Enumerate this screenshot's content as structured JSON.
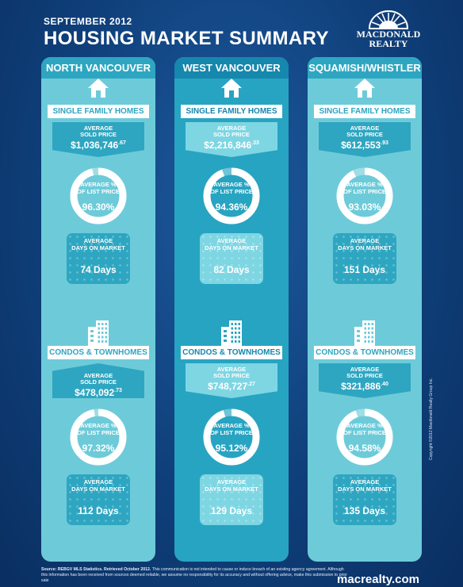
{
  "header": {
    "date": "SEPTEMBER 2012",
    "title": "HOUSING MARKET SUMMARY"
  },
  "logo": {
    "line1": "MACDONALD",
    "line2": "REALTY",
    "icon": "sunburst-logo-icon"
  },
  "colors": {
    "light_column": "#6dcbd9",
    "dark_column": "#27a4c2",
    "background": "#0f3f7a"
  },
  "columns": [
    {
      "name": "NORTH VANCOUVER",
      "sfh": {
        "label": "SINGLE FAMILY HOMES",
        "price_label_1": "AVERAGE",
        "price_label_2": "SOLD PRICE",
        "price": "$1,036,746",
        "price_cents": ".67",
        "ratio_label_1": "AVERAGE %",
        "ratio_label_2": "OF LIST PRICE",
        "ratio": "96.30%",
        "ratio_pct": 96.3,
        "days_label_1": "AVERAGE",
        "days_label_2": "DAYS ON MARKET",
        "days": "74 Days"
      },
      "condo": {
        "label": "CONDOS & TOWNHOMES",
        "price_label_1": "AVERAGE",
        "price_label_2": "SOLD PRICE",
        "price": "$478,092",
        "price_cents": ".73",
        "ratio_label_1": "AVERAGE %",
        "ratio_label_2": "OF LIST PRICE",
        "ratio": "97.32%",
        "ratio_pct": 97.32,
        "days_label_1": "AVERAGE",
        "days_label_2": "DAYS ON MARKET",
        "days": "112 Days"
      }
    },
    {
      "name": "WEST VANCOUVER",
      "sfh": {
        "label": "SINGLE FAMILY HOMES",
        "price_label_1": "AVERAGE",
        "price_label_2": "SOLD PRICE",
        "price": "$2,216,846",
        "price_cents": ".33",
        "ratio_label_1": "AVERAGE %",
        "ratio_label_2": "OF LIST PRICE",
        "ratio": "94.36%",
        "ratio_pct": 94.36,
        "days_label_1": "AVERAGE",
        "days_label_2": "DAYS ON MARKET",
        "days": "82 Days"
      },
      "condo": {
        "label": "CONDOS & TOWNHOMES",
        "price_label_1": "AVERAGE",
        "price_label_2": "SOLD PRICE",
        "price": "$748,727",
        "price_cents": ".27",
        "ratio_label_1": "AVERAGE %",
        "ratio_label_2": "OF LIST PRICE",
        "ratio": "95.12%",
        "ratio_pct": 95.12,
        "days_label_1": "AVERAGE",
        "days_label_2": "DAYS ON MARKET",
        "days": "129 Days"
      }
    },
    {
      "name": "SQUAMISH/WHISTLER",
      "sfh": {
        "label": "SINGLE FAMILY HOMES",
        "price_label_1": "AVERAGE",
        "price_label_2": "SOLD PRICE",
        "price": "$612,553",
        "price_cents": ".93",
        "ratio_label_1": "AVERAGE %",
        "ratio_label_2": "OF LIST PRICE",
        "ratio": "93.03%",
        "ratio_pct": 93.03,
        "days_label_1": "AVERAGE",
        "days_label_2": "DAYS ON MARKET",
        "days": "151 Days"
      },
      "condo": {
        "label": "CONDOS & TOWNHOMES",
        "price_label_1": "AVERAGE",
        "price_label_2": "SOLD PRICE",
        "price": "$321,886",
        "price_cents": ".40",
        "ratio_label_1": "AVERAGE %",
        "ratio_label_2": "OF LIST PRICE",
        "ratio": "94.58%",
        "ratio_pct": 94.58,
        "days_label_1": "AVERAGE",
        "days_label_2": "DAYS ON MARKET",
        "days": "135 Days"
      }
    }
  ],
  "footer": {
    "source_bold": "Source: REBGV MLS Statistics. Retrieved October 2012.",
    "disclaimer": "This communication is not intended to cause or induce breach of an existing agency agreement. Although this information has been received from sources deemed reliable, we assume no responsibility for its accuracy and without offering advice, make this submission to prior sale",
    "website": "macrealty.com",
    "copyright": "Copyright ©2012 Macdonald Realty Group Inc."
  }
}
